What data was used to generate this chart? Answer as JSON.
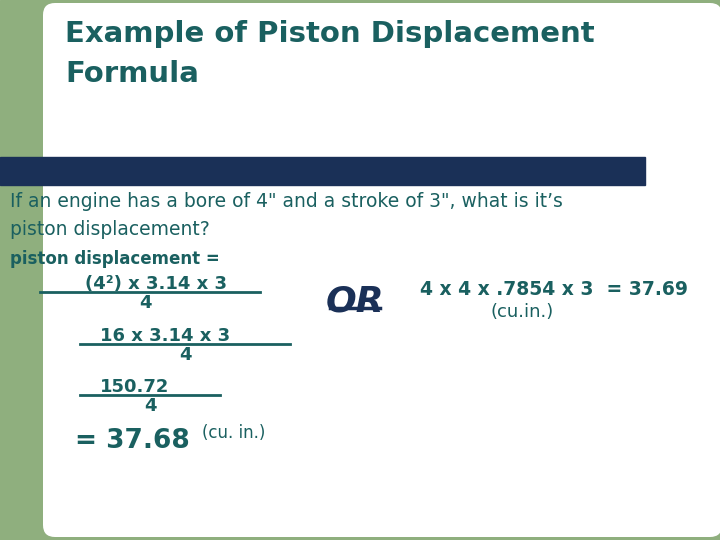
{
  "background_color": "#ffffff",
  "green_rect_color": "#8faf7e",
  "navy_bar_color": "#1a3057",
  "title_color": "#1a6060",
  "body_color": "#1a6060",
  "title_line1": "Example of Piston Displacement",
  "title_line2": "Formula",
  "body_line1": "If an engine has a bore of 4\" and a stroke of 3\", what is it’s",
  "body_line2": "piston displacement?",
  "label_piston": "piston displacement =",
  "line1_num": "(4²) x 3.14 x 3",
  "line1_den": "4",
  "line2_num": "16 x 3.14 x 3",
  "line2_den": "4",
  "line3_num": "150.72",
  "line3_den": "4",
  "result_bold": "= 37.68",
  "result_unit": "(cu. in.)",
  "or_text": "OR",
  "right_eq": "4 x 4 x .7854 x 3  = 37.69",
  "right_eq2": "(cu.in.)"
}
